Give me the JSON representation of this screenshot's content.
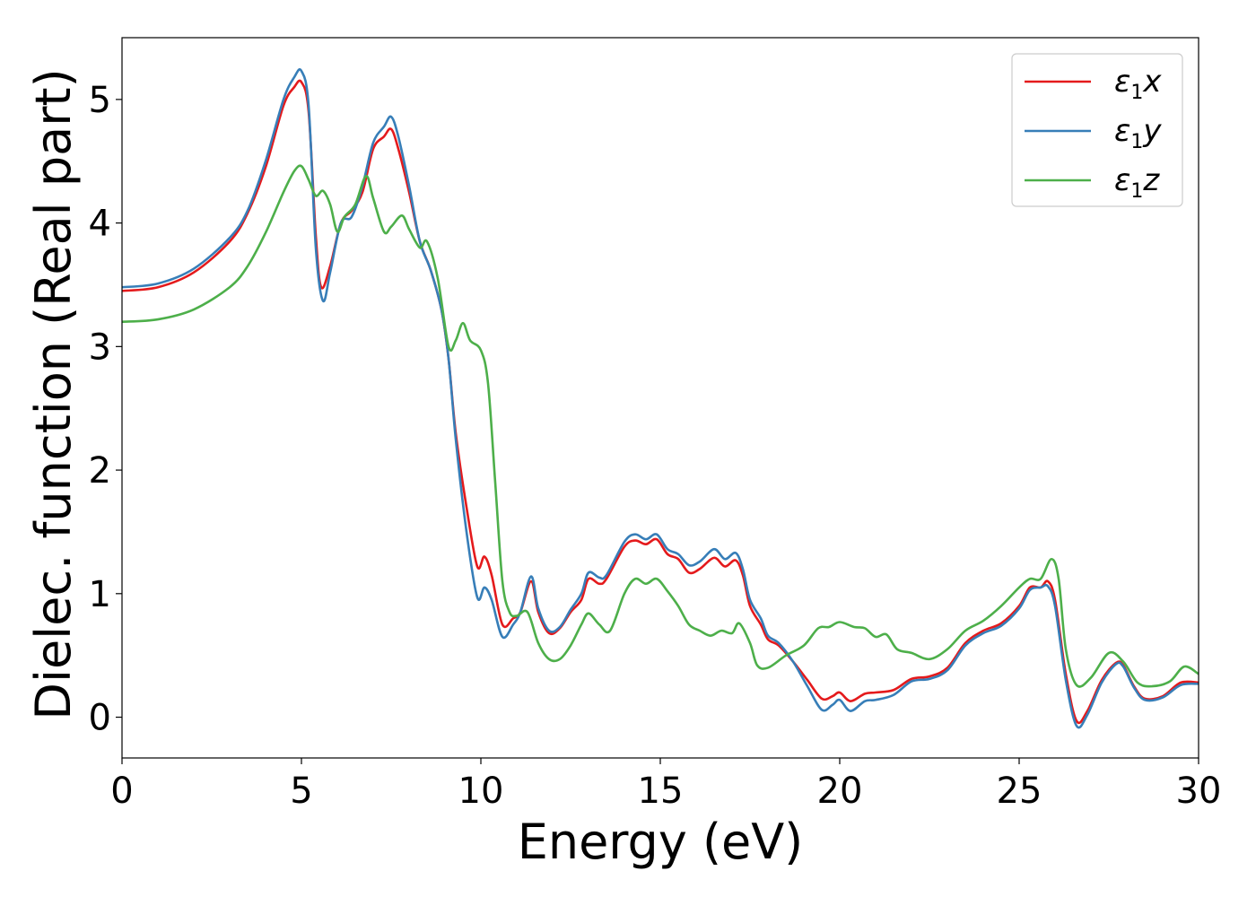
{
  "chart_data": {
    "type": "line",
    "xlabel": "Energy (eV)",
    "ylabel": "Dielec. function (Real part)",
    "xlim": [
      0,
      30
    ],
    "ylim": [
      -0.33,
      5.5
    ],
    "xticks": [
      0,
      5,
      10,
      15,
      20,
      25,
      30
    ],
    "yticks": [
      0,
      1,
      2,
      3,
      4,
      5
    ],
    "grid": false,
    "legend_position": "top-right",
    "series": [
      {
        "name": "ε1x",
        "legend_base": "ε",
        "legend_sub": "1",
        "legend_suffix": "x",
        "color": "#e41a1c",
        "points": [
          [
            0,
            3.45
          ],
          [
            1,
            3.48
          ],
          [
            2,
            3.6
          ],
          [
            3,
            3.85
          ],
          [
            3.5,
            4.08
          ],
          [
            4,
            4.45
          ],
          [
            4.5,
            4.95
          ],
          [
            4.8,
            5.1
          ],
          [
            5.0,
            5.14
          ],
          [
            5.2,
            4.9
          ],
          [
            5.4,
            3.9
          ],
          [
            5.55,
            3.48
          ],
          [
            5.8,
            3.65
          ],
          [
            6.1,
            4.0
          ],
          [
            6.4,
            4.1
          ],
          [
            6.7,
            4.25
          ],
          [
            7.0,
            4.6
          ],
          [
            7.3,
            4.7
          ],
          [
            7.5,
            4.76
          ],
          [
            7.7,
            4.6
          ],
          [
            8.0,
            4.25
          ],
          [
            8.3,
            3.85
          ],
          [
            8.6,
            3.62
          ],
          [
            8.9,
            3.3
          ],
          [
            9.1,
            2.9
          ],
          [
            9.3,
            2.3
          ],
          [
            9.6,
            1.7
          ],
          [
            9.9,
            1.22
          ],
          [
            10.1,
            1.3
          ],
          [
            10.3,
            1.15
          ],
          [
            10.6,
            0.75
          ],
          [
            10.9,
            0.8
          ],
          [
            11.1,
            0.85
          ],
          [
            11.4,
            1.1
          ],
          [
            11.6,
            0.85
          ],
          [
            11.9,
            0.68
          ],
          [
            12.2,
            0.72
          ],
          [
            12.5,
            0.85
          ],
          [
            12.8,
            0.95
          ],
          [
            13.0,
            1.12
          ],
          [
            13.3,
            1.08
          ],
          [
            13.5,
            1.12
          ],
          [
            14.0,
            1.38
          ],
          [
            14.3,
            1.43
          ],
          [
            14.6,
            1.4
          ],
          [
            14.9,
            1.44
          ],
          [
            15.2,
            1.32
          ],
          [
            15.5,
            1.28
          ],
          [
            15.8,
            1.17
          ],
          [
            16.1,
            1.2
          ],
          [
            16.5,
            1.29
          ],
          [
            16.8,
            1.22
          ],
          [
            17.1,
            1.27
          ],
          [
            17.3,
            1.15
          ],
          [
            17.5,
            0.9
          ],
          [
            17.8,
            0.75
          ],
          [
            18.0,
            0.63
          ],
          [
            18.3,
            0.58
          ],
          [
            18.7,
            0.45
          ],
          [
            19.1,
            0.3
          ],
          [
            19.5,
            0.15
          ],
          [
            19.8,
            0.17
          ],
          [
            20.0,
            0.2
          ],
          [
            20.3,
            0.13
          ],
          [
            20.7,
            0.19
          ],
          [
            21.0,
            0.2
          ],
          [
            21.5,
            0.22
          ],
          [
            22.0,
            0.31
          ],
          [
            22.5,
            0.33
          ],
          [
            23.0,
            0.4
          ],
          [
            23.5,
            0.6
          ],
          [
            24.0,
            0.7
          ],
          [
            24.5,
            0.76
          ],
          [
            25.0,
            0.9
          ],
          [
            25.3,
            1.05
          ],
          [
            25.6,
            1.05
          ],
          [
            25.8,
            1.1
          ],
          [
            26.0,
            0.95
          ],
          [
            26.3,
            0.35
          ],
          [
            26.6,
            -0.03
          ],
          [
            26.9,
            0.05
          ],
          [
            27.3,
            0.3
          ],
          [
            27.7,
            0.44
          ],
          [
            27.9,
            0.42
          ],
          [
            28.2,
            0.25
          ],
          [
            28.5,
            0.15
          ],
          [
            29.0,
            0.17
          ],
          [
            29.5,
            0.28
          ],
          [
            30,
            0.28
          ]
        ]
      },
      {
        "name": "ε1y",
        "legend_base": "ε",
        "legend_sub": "1",
        "legend_suffix": "y",
        "color": "#377eb8",
        "points": [
          [
            0,
            3.48
          ],
          [
            1,
            3.51
          ],
          [
            2,
            3.63
          ],
          [
            3,
            3.88
          ],
          [
            3.5,
            4.1
          ],
          [
            4,
            4.5
          ],
          [
            4.5,
            5.0
          ],
          [
            4.8,
            5.18
          ],
          [
            5.0,
            5.23
          ],
          [
            5.2,
            4.95
          ],
          [
            5.4,
            3.8
          ],
          [
            5.6,
            3.37
          ],
          [
            5.8,
            3.6
          ],
          [
            6.1,
            4.0
          ],
          [
            6.4,
            4.05
          ],
          [
            6.7,
            4.3
          ],
          [
            7.0,
            4.65
          ],
          [
            7.3,
            4.78
          ],
          [
            7.5,
            4.86
          ],
          [
            7.7,
            4.7
          ],
          [
            8.0,
            4.3
          ],
          [
            8.3,
            3.85
          ],
          [
            8.6,
            3.62
          ],
          [
            8.9,
            3.3
          ],
          [
            9.1,
            2.9
          ],
          [
            9.3,
            2.25
          ],
          [
            9.6,
            1.5
          ],
          [
            9.9,
            0.97
          ],
          [
            10.1,
            1.05
          ],
          [
            10.3,
            0.95
          ],
          [
            10.6,
            0.65
          ],
          [
            10.9,
            0.75
          ],
          [
            11.1,
            0.85
          ],
          [
            11.4,
            1.14
          ],
          [
            11.6,
            0.88
          ],
          [
            11.9,
            0.7
          ],
          [
            12.2,
            0.73
          ],
          [
            12.5,
            0.87
          ],
          [
            12.8,
            1.0
          ],
          [
            13.0,
            1.17
          ],
          [
            13.3,
            1.13
          ],
          [
            13.5,
            1.15
          ],
          [
            14.0,
            1.42
          ],
          [
            14.3,
            1.48
          ],
          [
            14.6,
            1.44
          ],
          [
            14.9,
            1.48
          ],
          [
            15.2,
            1.36
          ],
          [
            15.5,
            1.32
          ],
          [
            15.8,
            1.23
          ],
          [
            16.1,
            1.26
          ],
          [
            16.5,
            1.36
          ],
          [
            16.8,
            1.28
          ],
          [
            17.1,
            1.33
          ],
          [
            17.3,
            1.2
          ],
          [
            17.5,
            0.95
          ],
          [
            17.8,
            0.8
          ],
          [
            18.0,
            0.66
          ],
          [
            18.3,
            0.6
          ],
          [
            18.7,
            0.45
          ],
          [
            19.1,
            0.25
          ],
          [
            19.5,
            0.06
          ],
          [
            19.8,
            0.1
          ],
          [
            20.0,
            0.14
          ],
          [
            20.3,
            0.05
          ],
          [
            20.7,
            0.13
          ],
          [
            21.0,
            0.14
          ],
          [
            21.5,
            0.18
          ],
          [
            22.0,
            0.29
          ],
          [
            22.5,
            0.31
          ],
          [
            23.0,
            0.38
          ],
          [
            23.5,
            0.58
          ],
          [
            24.0,
            0.68
          ],
          [
            24.5,
            0.74
          ],
          [
            25.0,
            0.88
          ],
          [
            25.3,
            1.03
          ],
          [
            25.6,
            1.05
          ],
          [
            25.8,
            1.06
          ],
          [
            26.0,
            0.9
          ],
          [
            26.3,
            0.3
          ],
          [
            26.6,
            -0.07
          ],
          [
            26.9,
            0.02
          ],
          [
            27.3,
            0.28
          ],
          [
            27.7,
            0.43
          ],
          [
            27.9,
            0.41
          ],
          [
            28.2,
            0.24
          ],
          [
            28.5,
            0.14
          ],
          [
            29.0,
            0.16
          ],
          [
            29.5,
            0.26
          ],
          [
            30,
            0.27
          ]
        ]
      },
      {
        "name": "ε1z",
        "legend_base": "ε",
        "legend_sub": "1",
        "legend_suffix": "z",
        "color": "#4daf4a",
        "points": [
          [
            0,
            3.2
          ],
          [
            1,
            3.22
          ],
          [
            2,
            3.3
          ],
          [
            3,
            3.48
          ],
          [
            3.5,
            3.65
          ],
          [
            4,
            3.92
          ],
          [
            4.5,
            4.25
          ],
          [
            4.8,
            4.42
          ],
          [
            5.0,
            4.46
          ],
          [
            5.2,
            4.35
          ],
          [
            5.4,
            4.22
          ],
          [
            5.6,
            4.26
          ],
          [
            5.8,
            4.15
          ],
          [
            6.0,
            3.93
          ],
          [
            6.2,
            4.05
          ],
          [
            6.5,
            4.15
          ],
          [
            6.8,
            4.38
          ],
          [
            7.0,
            4.2
          ],
          [
            7.3,
            3.93
          ],
          [
            7.5,
            3.97
          ],
          [
            7.8,
            4.06
          ],
          [
            8.0,
            3.95
          ],
          [
            8.3,
            3.8
          ],
          [
            8.5,
            3.85
          ],
          [
            8.8,
            3.55
          ],
          [
            9.1,
            3.0
          ],
          [
            9.3,
            3.05
          ],
          [
            9.5,
            3.19
          ],
          [
            9.7,
            3.05
          ],
          [
            10.0,
            2.97
          ],
          [
            10.2,
            2.7
          ],
          [
            10.4,
            1.9
          ],
          [
            10.6,
            1.1
          ],
          [
            10.8,
            0.85
          ],
          [
            11.0,
            0.82
          ],
          [
            11.3,
            0.85
          ],
          [
            11.6,
            0.6
          ],
          [
            11.9,
            0.47
          ],
          [
            12.2,
            0.47
          ],
          [
            12.5,
            0.58
          ],
          [
            12.8,
            0.75
          ],
          [
            13.0,
            0.84
          ],
          [
            13.3,
            0.75
          ],
          [
            13.6,
            0.7
          ],
          [
            14.0,
            1.0
          ],
          [
            14.3,
            1.12
          ],
          [
            14.6,
            1.08
          ],
          [
            14.9,
            1.12
          ],
          [
            15.2,
            1.02
          ],
          [
            15.5,
            0.9
          ],
          [
            15.8,
            0.75
          ],
          [
            16.1,
            0.7
          ],
          [
            16.4,
            0.66
          ],
          [
            16.7,
            0.7
          ],
          [
            17.0,
            0.68
          ],
          [
            17.2,
            0.76
          ],
          [
            17.5,
            0.6
          ],
          [
            17.7,
            0.42
          ],
          [
            18.0,
            0.4
          ],
          [
            18.5,
            0.5
          ],
          [
            19.0,
            0.58
          ],
          [
            19.4,
            0.72
          ],
          [
            19.7,
            0.73
          ],
          [
            20.0,
            0.77
          ],
          [
            20.4,
            0.73
          ],
          [
            20.7,
            0.72
          ],
          [
            21.0,
            0.65
          ],
          [
            21.3,
            0.67
          ],
          [
            21.6,
            0.55
          ],
          [
            22.0,
            0.52
          ],
          [
            22.5,
            0.47
          ],
          [
            23.0,
            0.55
          ],
          [
            23.5,
            0.7
          ],
          [
            24.0,
            0.78
          ],
          [
            24.5,
            0.9
          ],
          [
            25.0,
            1.05
          ],
          [
            25.3,
            1.12
          ],
          [
            25.6,
            1.12
          ],
          [
            25.9,
            1.28
          ],
          [
            26.1,
            1.12
          ],
          [
            26.3,
            0.55
          ],
          [
            26.6,
            0.26
          ],
          [
            27.0,
            0.32
          ],
          [
            27.5,
            0.52
          ],
          [
            27.9,
            0.45
          ],
          [
            28.3,
            0.28
          ],
          [
            28.7,
            0.25
          ],
          [
            29.2,
            0.29
          ],
          [
            29.6,
            0.41
          ],
          [
            30,
            0.35
          ]
        ]
      }
    ]
  }
}
